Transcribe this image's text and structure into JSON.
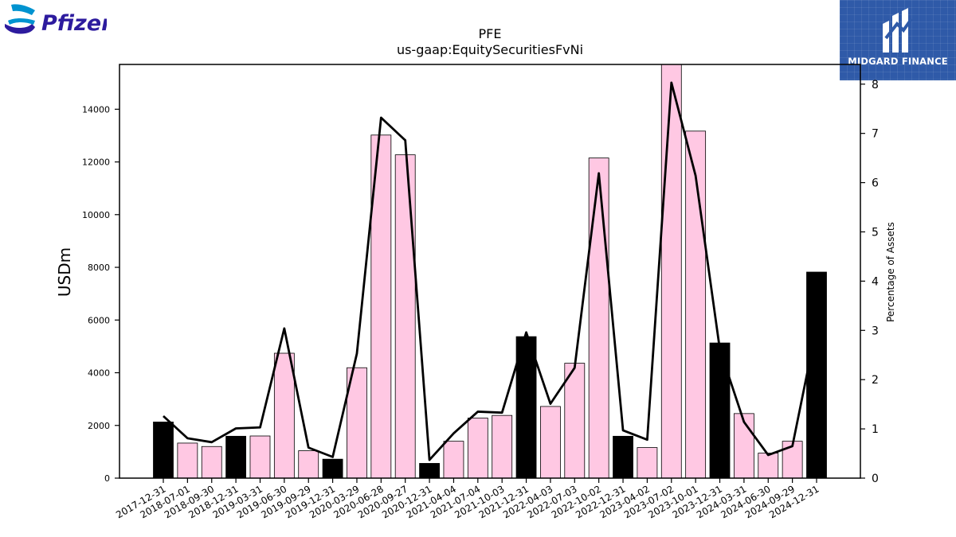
{
  "brand": {
    "company_logo_text": "Pfizer",
    "partner_logo_text": "MIDGARD FINANCE"
  },
  "colors": {
    "highlight_bar": "#000000",
    "normal_bar": "#ffc8e3",
    "line": "#000000"
  },
  "chart_data": {
    "type": "bar",
    "title": "PFE",
    "subtitle": "us-gaap:EquitySecuritiesFvNi",
    "ylabel": "USDm",
    "y2label": "Percentage of Assets",
    "ylim": [
      0,
      15700
    ],
    "y2lim": [
      0,
      8.4
    ],
    "yticks": [
      0,
      2000,
      4000,
      6000,
      8000,
      10000,
      12000,
      14000
    ],
    "y2ticks": [
      0,
      1,
      2,
      3,
      4,
      5,
      6,
      7,
      8
    ],
    "categories": [
      "2017-12-31",
      "2018-07-01",
      "2018-09-30",
      "2018-12-31",
      "2019-03-31",
      "2019-06-30",
      "2019-09-29",
      "2019-12-31",
      "2020-03-29",
      "2020-06-28",
      "2020-09-27",
      "2020-12-31",
      "2021-04-04",
      "2021-07-04",
      "2021-10-03",
      "2021-12-31",
      "2022-04-03",
      "2022-07-03",
      "2022-10-02",
      "2022-12-31",
      "2023-04-02",
      "2023-07-02",
      "2023-10-01",
      "2023-12-31",
      "2024-03-31",
      "2024-06-30",
      "2024-09-29",
      "2024-12-31"
    ],
    "highlight": [
      true,
      false,
      false,
      true,
      false,
      false,
      false,
      true,
      false,
      false,
      false,
      true,
      false,
      false,
      false,
      true,
      false,
      false,
      false,
      true,
      false,
      false,
      false,
      true,
      false,
      false,
      false,
      true
    ],
    "series": [
      {
        "type": "bar",
        "axis": "left",
        "values": [
          2130,
          1330,
          1200,
          1590,
          1600,
          4740,
          1040,
          720,
          4190,
          13020,
          12270,
          560,
          1400,
          2280,
          2380,
          5370,
          2720,
          4360,
          12150,
          1590,
          1160,
          15900,
          13170,
          5130,
          2450,
          950,
          1400,
          7820
        ]
      },
      {
        "type": "line",
        "axis": "right",
        "values": [
          1.26,
          0.81,
          0.73,
          1.01,
          1.03,
          3.04,
          0.62,
          0.43,
          2.53,
          7.32,
          6.86,
          0.37,
          0.91,
          1.35,
          1.33,
          2.96,
          1.51,
          2.24,
          6.19,
          0.97,
          0.78,
          8.03,
          6.14,
          2.62,
          1.14,
          0.47,
          0.65,
          3.07
        ]
      }
    ]
  }
}
